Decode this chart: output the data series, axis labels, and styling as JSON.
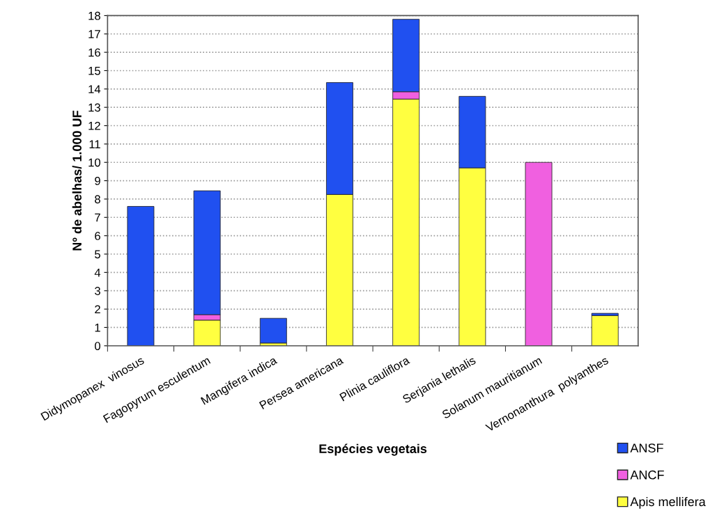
{
  "chart_data": {
    "type": "bar",
    "stacked": true,
    "xlabel": "Espécies vegetais",
    "ylabel": "Nº de abelhas/ 1.000 UF",
    "categories": [
      "Didymopanex  vinosus",
      "Fagopyrum esculentum",
      "Mangifera indica",
      "Persea americana",
      "Plinia cauliflora",
      "Serjania lethalis",
      "Solanum mauritianum",
      "Vernonanthura  polyanthes"
    ],
    "series": [
      {
        "name": "Apis mellifera",
        "color": "#ffff40",
        "values": [
          null,
          1.4,
          0.15,
          8.25,
          13.45,
          9.7,
          0,
          1.65
        ]
      },
      {
        "name": "ANCF",
        "color": "#f060e0",
        "values": [
          0,
          0.3,
          0,
          0,
          0.4,
          0,
          10.0,
          0
        ]
      },
      {
        "name": "ANSF",
        "color": "#2050f0",
        "values": [
          7.6,
          6.75,
          1.35,
          6.1,
          3.95,
          3.9,
          0,
          0.12
        ]
      }
    ],
    "ylim": [
      0,
      18
    ],
    "yticks": [
      0,
      1,
      2,
      3,
      4,
      5,
      6,
      7,
      8,
      9,
      10,
      11,
      12,
      13,
      14,
      15,
      16,
      17,
      18
    ],
    "grid": "y",
    "legend": "bottom right"
  }
}
